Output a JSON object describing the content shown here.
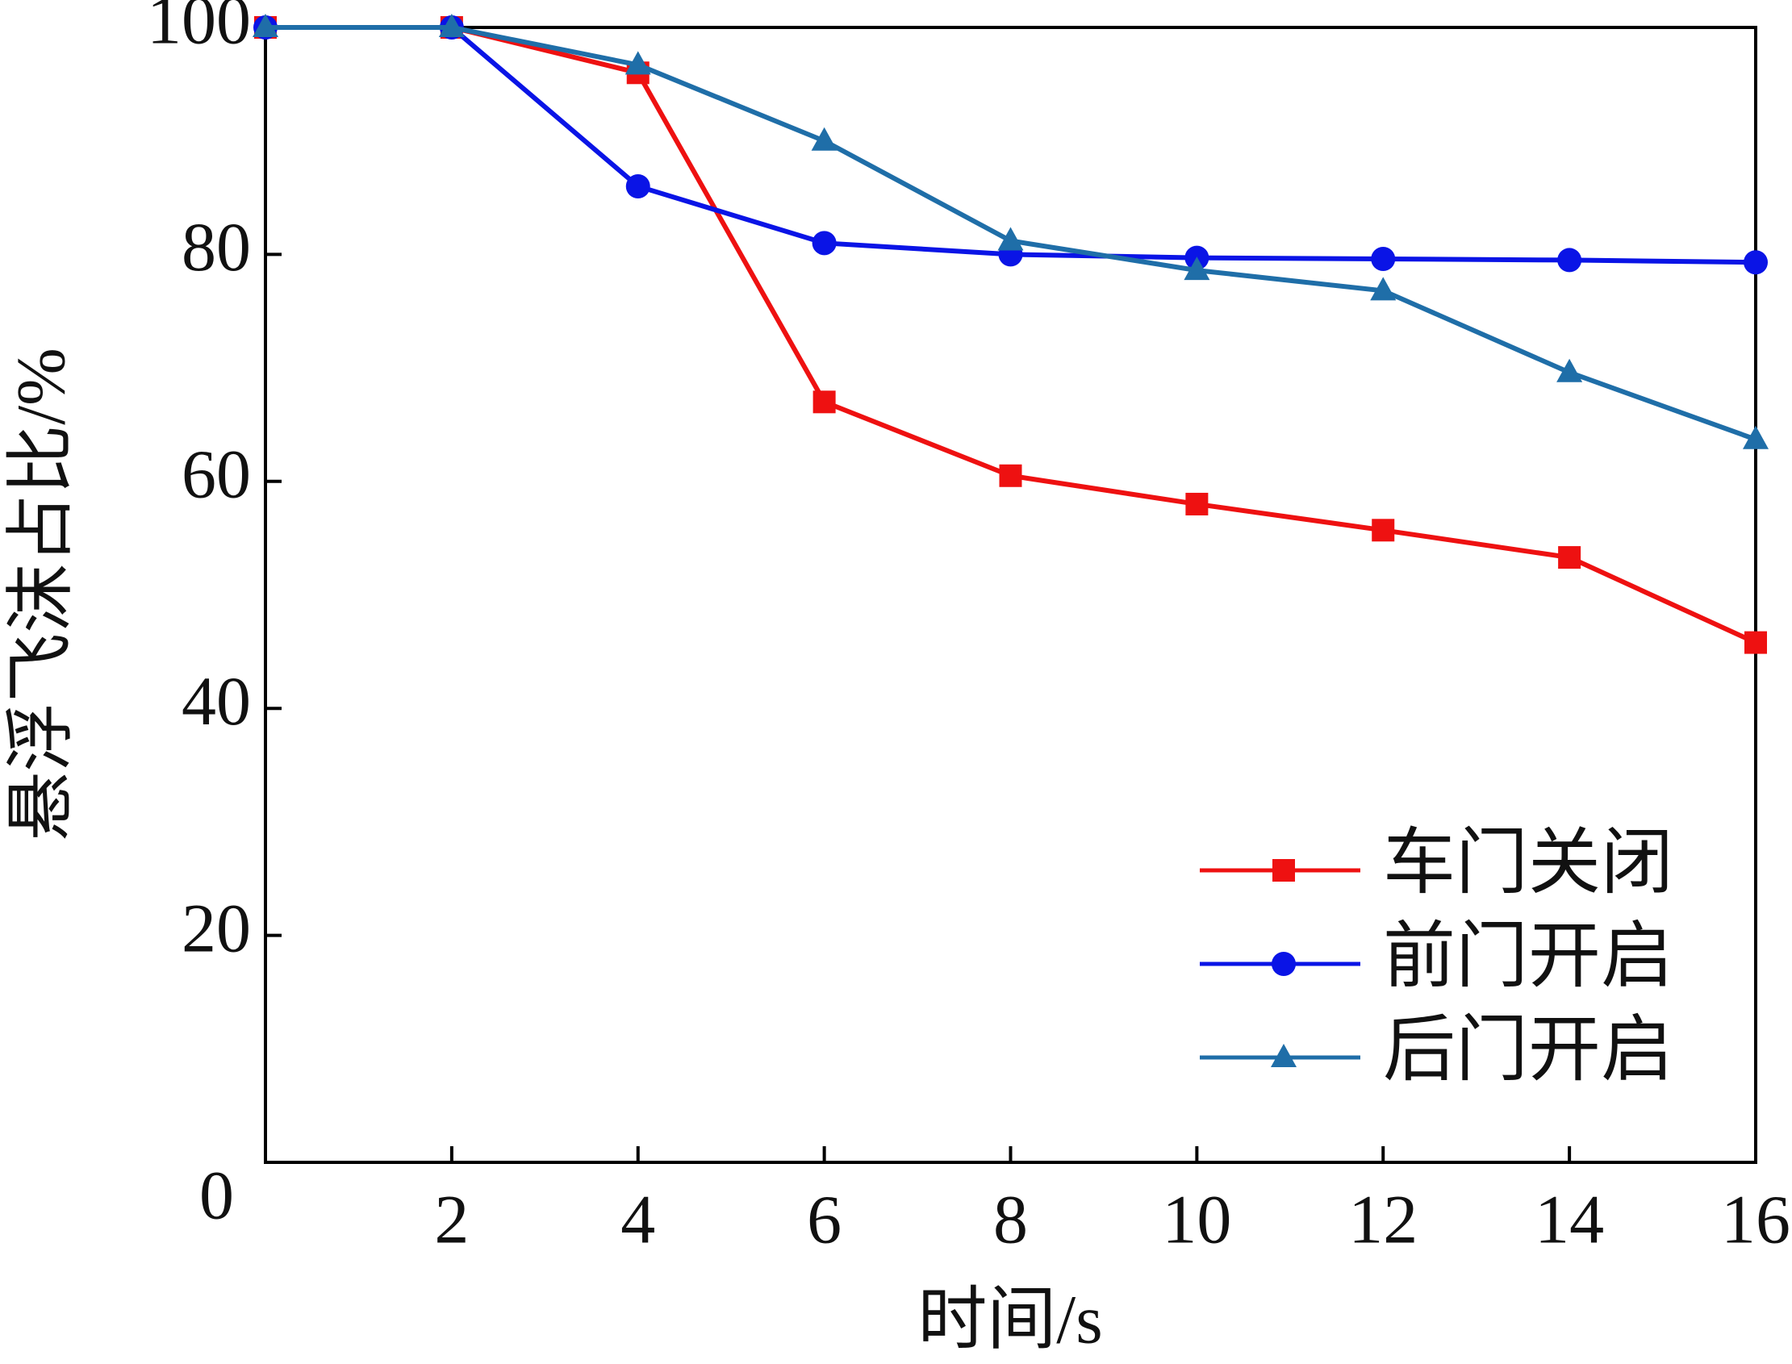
{
  "chart_data": {
    "type": "line",
    "x_label": "时间/s",
    "y_label": "悬浮飞沫占比/%",
    "x": [
      0,
      2,
      4,
      6,
      8,
      10,
      12,
      14,
      16
    ],
    "series": [
      {
        "name": "车门关闭",
        "color": "#ee1111",
        "marker": "square",
        "values": [
          100,
          100,
          96,
          67,
          60.5,
          58,
          55.7,
          53.3,
          45.8
        ]
      },
      {
        "name": "前门开启",
        "color": "#0a14e6",
        "marker": "circle",
        "values": [
          100,
          100,
          86,
          81,
          80,
          79.7,
          79.6,
          79.5,
          79.3
        ]
      },
      {
        "name": "后门开启",
        "color": "#1f6ea8",
        "marker": "triangle",
        "values": [
          100,
          100,
          96.7,
          90,
          81.2,
          78.6,
          76.8,
          69.6,
          63.7
        ]
      }
    ],
    "xlim": [
      0,
      16
    ],
    "xticks": [
      2,
      4,
      6,
      8,
      10,
      12,
      14,
      16
    ],
    "ylim": [
      0,
      100
    ],
    "yticks": [
      0,
      20,
      40,
      60,
      80,
      100
    ],
    "legend": "lower right",
    "grid": false
  }
}
